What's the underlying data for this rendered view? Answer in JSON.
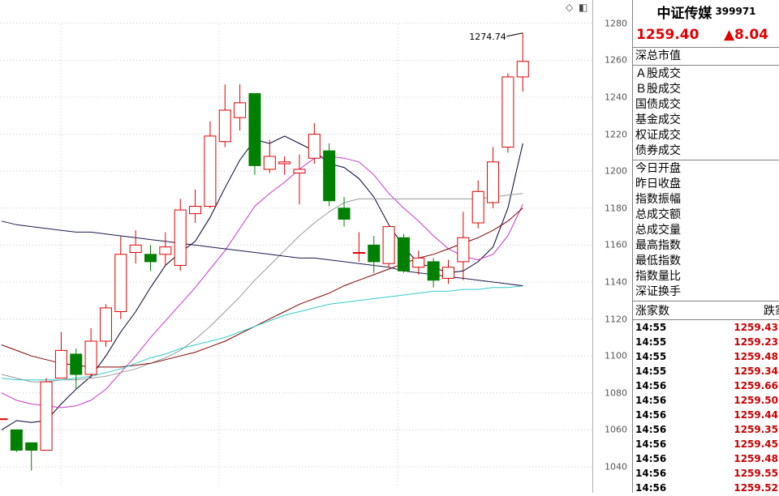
{
  "stock": {
    "name": "中证传媒",
    "code": "399971",
    "price": "1259.40",
    "change": "▲8.04"
  },
  "labels_group1": [
    "深总市值"
  ],
  "labels_group2": [
    "Ａ股成交",
    "Ｂ股成交",
    "国债成交",
    "基金成交",
    "权证成交",
    "债券成交"
  ],
  "labels_group3": [
    "今日开盘",
    "昨日收盘",
    "指数振幅",
    "总成交额",
    "总成交量",
    "最高指数",
    "最低指数",
    "指数量比",
    "深证换手"
  ],
  "counts": {
    "up": "涨家数",
    "down": "跌家"
  },
  "ticks": [
    {
      "time": "14:55",
      "price": "1259.43"
    },
    {
      "time": "14:55",
      "price": "1259.23"
    },
    {
      "time": "14:55",
      "price": "1259.48"
    },
    {
      "time": "14:55",
      "price": "1259.34"
    },
    {
      "time": "14:56",
      "price": "1259.66"
    },
    {
      "time": "14:56",
      "price": "1259.50"
    },
    {
      "time": "14:56",
      "price": "1259.44"
    },
    {
      "time": "14:56",
      "price": "1259.35"
    },
    {
      "time": "14:56",
      "price": "1259.45"
    },
    {
      "time": "14:56",
      "price": "1259.48"
    },
    {
      "time": "14:56",
      "price": "1259.55"
    },
    {
      "time": "14:56",
      "price": "1259.52"
    }
  ],
  "annotation": "1274.74",
  "icons": {
    "diamond": "◇",
    "window": "◧"
  },
  "colors": {
    "up": "#e00000",
    "down": "#008000",
    "ma5": "#000033",
    "ma10": "#cc33cc",
    "ma20": "#999999",
    "ma60": "#800000",
    "ma120": "#33cccc",
    "ma250": "#1a1a4d"
  },
  "chart_data": {
    "type": "candlestick",
    "y_ticks": [
      1040,
      1060,
      1080,
      1100,
      1120,
      1140,
      1160,
      1180,
      1200,
      1220,
      1240,
      1260,
      1280
    ],
    "ylim": [
      1030,
      1284
    ],
    "candles": [
      {
        "o": 1066,
        "c": 1066,
        "h": 1066,
        "l": 1066
      },
      {
        "o": 1060,
        "c": 1049,
        "h": 1060,
        "l": 1048
      },
      {
        "o": 1053,
        "c": 1049,
        "h": 1053,
        "l": 1038
      },
      {
        "o": 1049,
        "c": 1086,
        "h": 1088,
        "l": 1049
      },
      {
        "o": 1088,
        "c": 1103,
        "h": 1113,
        "l": 1088
      },
      {
        "o": 1101,
        "c": 1090,
        "h": 1104,
        "l": 1082
      },
      {
        "o": 1090,
        "c": 1108,
        "h": 1115,
        "l": 1088
      },
      {
        "o": 1108,
        "c": 1126,
        "h": 1128,
        "l": 1105
      },
      {
        "o": 1124,
        "c": 1155,
        "h": 1165,
        "l": 1120
      },
      {
        "o": 1156,
        "c": 1160,
        "h": 1168,
        "l": 1150
      },
      {
        "o": 1155,
        "c": 1151,
        "h": 1160,
        "l": 1146
      },
      {
        "o": 1155,
        "c": 1159,
        "h": 1167,
        "l": 1149
      },
      {
        "o": 1149,
        "c": 1179,
        "h": 1185,
        "l": 1146
      },
      {
        "o": 1177,
        "c": 1181,
        "h": 1190,
        "l": 1172
      },
      {
        "o": 1181,
        "c": 1219,
        "h": 1227,
        "l": 1180
      },
      {
        "o": 1216,
        "c": 1233,
        "h": 1247,
        "l": 1213
      },
      {
        "o": 1229,
        "c": 1237,
        "h": 1247,
        "l": 1222
      },
      {
        "o": 1242,
        "c": 1203,
        "h": 1242,
        "l": 1198
      },
      {
        "o": 1201,
        "c": 1208,
        "h": 1217,
        "l": 1199
      },
      {
        "o": 1204,
        "c": 1205,
        "h": 1208,
        "l": 1198
      },
      {
        "o": 1199,
        "c": 1201,
        "h": 1209,
        "l": 1182
      },
      {
        "o": 1207,
        "c": 1220,
        "h": 1226,
        "l": 1204
      },
      {
        "o": 1211,
        "c": 1184,
        "h": 1215,
        "l": 1181
      },
      {
        "o": 1180,
        "c": 1174,
        "h": 1186,
        "l": 1170
      },
      {
        "o": 1156,
        "c": 1156,
        "h": 1167,
        "l": 1151
      },
      {
        "o": 1160,
        "c": 1151,
        "h": 1165,
        "l": 1145
      },
      {
        "o": 1150,
        "c": 1170,
        "h": 1170,
        "l": 1148
      },
      {
        "o": 1164,
        "c": 1146,
        "h": 1166,
        "l": 1145
      },
      {
        "o": 1148,
        "c": 1153,
        "h": 1157,
        "l": 1144
      },
      {
        "o": 1151,
        "c": 1141,
        "h": 1153,
        "l": 1137
      },
      {
        "o": 1142,
        "c": 1148,
        "h": 1152,
        "l": 1139
      },
      {
        "o": 1151,
        "c": 1164,
        "h": 1178,
        "l": 1141
      },
      {
        "o": 1172,
        "c": 1189,
        "h": 1195,
        "l": 1169
      },
      {
        "o": 1183,
        "c": 1205,
        "h": 1213,
        "l": 1180
      },
      {
        "o": 1213,
        "c": 1251,
        "h": 1253,
        "l": 1210
      },
      {
        "o": 1251,
        "c": 1259.4,
        "h": 1274.74,
        "l": 1243
      }
    ],
    "ma_lines": [
      {
        "name": "ma5",
        "values": [
          1060,
          1065,
          1064,
          1065,
          1074,
          1082,
          1089,
          1100,
          1113,
          1124,
          1137,
          1149,
          1156,
          1162,
          1175,
          1191,
          1206,
          1217,
          1215,
          1219,
          1215,
          1211,
          1204,
          1202,
          1196,
          1186,
          1171,
          1159,
          1150,
          1148,
          1145,
          1146,
          1151,
          1159,
          1180,
          1215
        ]
      },
      {
        "name": "ma10",
        "values": [
          1080,
          1076,
          1074,
          1073,
          1072,
          1073,
          1076,
          1082,
          1091,
          1100,
          1110,
          1119,
          1128,
          1137,
          1147,
          1157,
          1169,
          1181,
          1188,
          1194,
          1201,
          1207,
          1208,
          1207,
          1205,
          1198,
          1188,
          1180,
          1173,
          1165,
          1158,
          1154,
          1152,
          1155,
          1165,
          1182
        ]
      },
      {
        "name": "ma20",
        "values": [
          1090,
          1088,
          1086,
          1086,
          1087,
          1087,
          1088,
          1089,
          1091,
          1093,
          1096,
          1099,
          1103,
          1109,
          1116,
          1124,
          1132,
          1141,
          1149,
          1157,
          1165,
          1172,
          1178,
          1183,
          1185,
          1185,
          1185,
          1185,
          1185,
          1185,
          1185,
          1185,
          1185,
          1186,
          1187,
          1188
        ]
      },
      {
        "name": "ma60",
        "values": [
          1106,
          1103,
          1100,
          1098,
          1096,
          1095,
          1094,
          1094,
          1094,
          1095,
          1096,
          1098,
          1100,
          1102,
          1105,
          1108,
          1112,
          1116,
          1120,
          1124,
          1128,
          1131,
          1134,
          1138,
          1141,
          1144,
          1147,
          1150,
          1153,
          1155,
          1158,
          1161,
          1164,
          1168,
          1173,
          1180
        ]
      },
      {
        "name": "ma120",
        "values": [
          1088,
          1087,
          1087,
          1087,
          1087,
          1088,
          1089,
          1091,
          1093,
          1096,
          1099,
          1101,
          1104,
          1106,
          1108,
          1110,
          1113,
          1116,
          1119,
          1122,
          1124,
          1126,
          1128,
          1129,
          1130,
          1131,
          1132,
          1133,
          1134,
          1135,
          1135,
          1136,
          1136,
          1137,
          1137,
          1138
        ]
      },
      {
        "name": "ma250",
        "values": [
          1173,
          1171,
          1170,
          1169,
          1168,
          1167,
          1167,
          1166,
          1165,
          1164,
          1163,
          1162,
          1161,
          1160,
          1159,
          1158,
          1157,
          1156,
          1155,
          1154,
          1153,
          1153,
          1152,
          1151,
          1150,
          1149,
          1148,
          1146,
          1145,
          1144,
          1143,
          1142,
          1141,
          1140,
          1139,
          1138
        ]
      }
    ]
  }
}
